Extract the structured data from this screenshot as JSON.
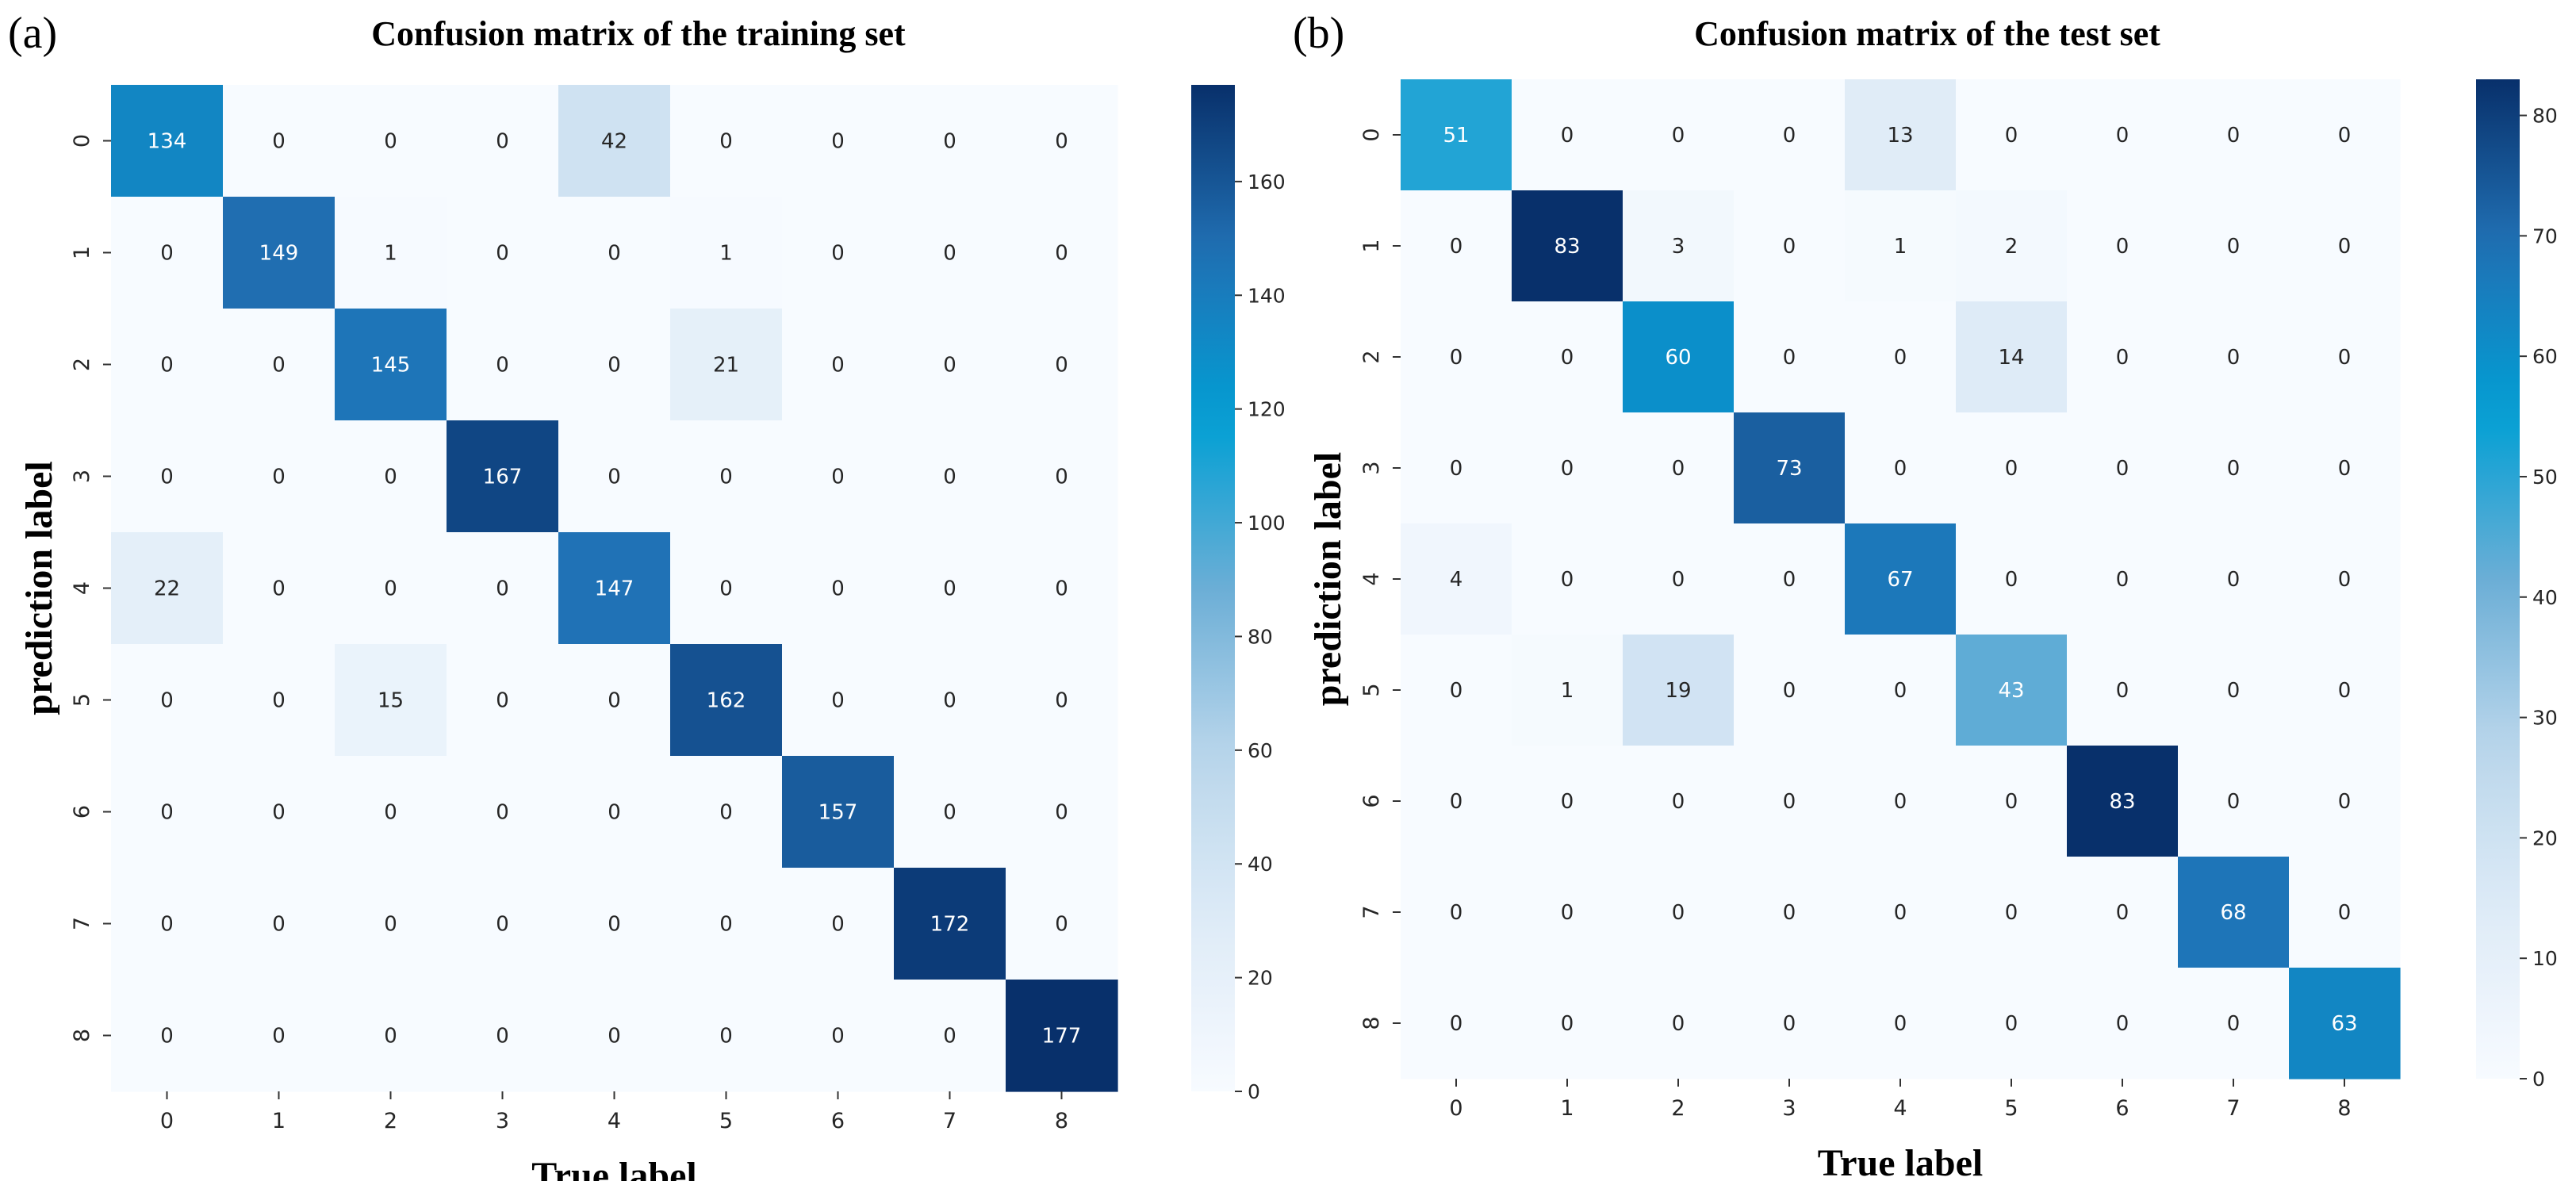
{
  "chart_data": [
    {
      "type": "heatmap",
      "panel_label": "(a)",
      "title": "Confusion matrix of the training set",
      "xlabel": "True label",
      "ylabel": "prediction label",
      "x_ticks": [
        "0",
        "1",
        "2",
        "3",
        "4",
        "5",
        "6",
        "7",
        "8"
      ],
      "y_ticks": [
        "0",
        "1",
        "2",
        "3",
        "4",
        "5",
        "6",
        "7",
        "8"
      ],
      "matrix": [
        [
          134,
          0,
          0,
          0,
          42,
          0,
          0,
          0,
          0
        ],
        [
          0,
          149,
          1,
          0,
          0,
          1,
          0,
          0,
          0
        ],
        [
          0,
          0,
          145,
          0,
          0,
          21,
          0,
          0,
          0
        ],
        [
          0,
          0,
          0,
          167,
          0,
          0,
          0,
          0,
          0
        ],
        [
          22,
          0,
          0,
          0,
          147,
          0,
          0,
          0,
          0
        ],
        [
          0,
          0,
          15,
          0,
          0,
          162,
          0,
          0,
          0
        ],
        [
          0,
          0,
          0,
          0,
          0,
          0,
          157,
          0,
          0
        ],
        [
          0,
          0,
          0,
          0,
          0,
          0,
          0,
          172,
          0
        ],
        [
          0,
          0,
          0,
          0,
          0,
          0,
          0,
          0,
          177
        ]
      ],
      "colorbar": {
        "vmin": 0,
        "vmax": 177,
        "ticks": [
          0,
          20,
          40,
          60,
          80,
          100,
          120,
          140,
          160
        ]
      },
      "colormap": "Blues"
    },
    {
      "type": "heatmap",
      "panel_label": "(b)",
      "title": "Confusion matrix of the test set",
      "xlabel": "True label",
      "ylabel": "prediction label",
      "x_ticks": [
        "0",
        "1",
        "2",
        "3",
        "4",
        "5",
        "6",
        "7",
        "8"
      ],
      "y_ticks": [
        "0",
        "1",
        "2",
        "3",
        "4",
        "5",
        "6",
        "7",
        "8"
      ],
      "matrix": [
        [
          51,
          0,
          0,
          0,
          13,
          0,
          0,
          0,
          0
        ],
        [
          0,
          83,
          3,
          0,
          1,
          2,
          0,
          0,
          0
        ],
        [
          0,
          0,
          60,
          0,
          0,
          14,
          0,
          0,
          0
        ],
        [
          0,
          0,
          0,
          73,
          0,
          0,
          0,
          0,
          0
        ],
        [
          4,
          0,
          0,
          0,
          67,
          0,
          0,
          0,
          0
        ],
        [
          0,
          1,
          19,
          0,
          0,
          43,
          0,
          0,
          0
        ],
        [
          0,
          0,
          0,
          0,
          0,
          0,
          83,
          0,
          0
        ],
        [
          0,
          0,
          0,
          0,
          0,
          0,
          0,
          68,
          0
        ],
        [
          0,
          0,
          0,
          0,
          0,
          0,
          0,
          0,
          63
        ]
      ],
      "colorbar": {
        "vmin": 0,
        "vmax": 83,
        "ticks": [
          0,
          10,
          20,
          30,
          40,
          50,
          60,
          70,
          80
        ]
      },
      "colormap": "Blues"
    }
  ],
  "colors": {
    "blues": [
      "#f7fbff",
      "#deebf7",
      "#bad6eb",
      "#6baed6",
      "#009fd4",
      "#2171b5",
      "#08306b"
    ],
    "text_light": "#ffffff",
    "text_dark": "#262626"
  }
}
